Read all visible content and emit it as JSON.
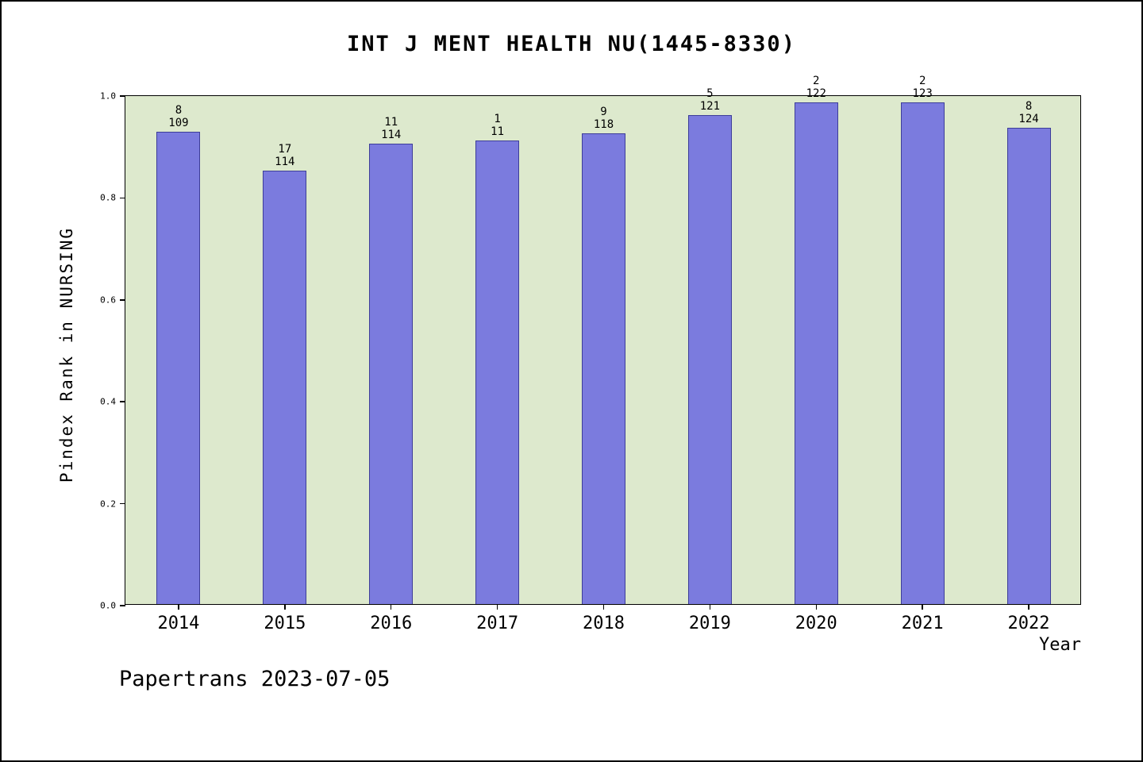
{
  "footer": "Papertrans 2023-07-05",
  "chart_data": {
    "type": "bar",
    "title": "INT J MENT HEALTH NU(1445-8330)",
    "xlabel": "Year",
    "ylabel": "Pindex Rank in NURSING",
    "ylim": [
      0,
      1.0
    ],
    "yticks": [
      "0.0",
      "0.2",
      "0.4",
      "0.6",
      "0.8",
      "1.0"
    ],
    "grid": false,
    "legend_position": "none",
    "plot_bg": "#dde9cd",
    "bar_color": "#7b7bde",
    "bar_edge_color": "#3d3d99",
    "categories": [
      "2014",
      "2015",
      "2016",
      "2017",
      "2018",
      "2019",
      "2020",
      "2021",
      "2022"
    ],
    "values": [
      0.927,
      0.851,
      0.904,
      0.909,
      0.924,
      0.959,
      0.984,
      0.984,
      0.935
    ],
    "bar_labels": [
      [
        "8",
        "109"
      ],
      [
        "17",
        "114"
      ],
      [
        "11",
        "114"
      ],
      [
        "1",
        "11"
      ],
      [
        "9",
        "118"
      ],
      [
        "5",
        "121"
      ],
      [
        "2",
        "122"
      ],
      [
        "2",
        "123"
      ],
      [
        "8",
        "124"
      ]
    ]
  }
}
